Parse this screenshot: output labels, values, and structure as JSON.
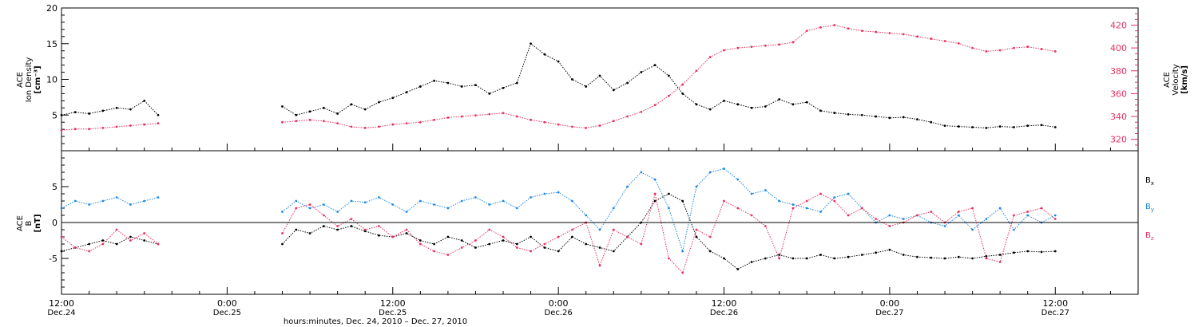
{
  "chart_data": [
    {
      "type": "scatter",
      "panel": "top",
      "ylabel": [
        "ACE",
        "Ion Density",
        "[cm⁻³]"
      ],
      "y2label": [
        "ACE",
        "Velocity",
        "[km/s]"
      ],
      "ylim": [
        0,
        20
      ],
      "y2lim": [
        310,
        435
      ],
      "yticks": [
        5,
        10,
        15,
        20
      ],
      "y2ticks": [
        320,
        340,
        360,
        380,
        400,
        420
      ],
      "series": [
        {
          "name": "",
          "color": "#000000",
          "axis": "left",
          "x": [
            0,
            1,
            2,
            3,
            4,
            5,
            6,
            7,
            8,
            9,
            10,
            11,
            12,
            13,
            14,
            15,
            16,
            17,
            18,
            19,
            20,
            21,
            22,
            23,
            24,
            25,
            26,
            27,
            28,
            29,
            30,
            31,
            32,
            33,
            34,
            35,
            36,
            37,
            38,
            39,
            40,
            41,
            42,
            43,
            44,
            45,
            46,
            47,
            48,
            49,
            50,
            51,
            52,
            53,
            54,
            55,
            56,
            57,
            58,
            59,
            60,
            61,
            62,
            63,
            64,
            65,
            66,
            67,
            68,
            69,
            70,
            71,
            72
          ],
          "y": [
            5,
            5.4,
            5.2,
            5.6,
            6,
            5.8,
            7,
            5,
            null,
            null,
            null,
            null,
            null,
            null,
            null,
            null,
            6.2,
            5,
            5.5,
            6,
            5.2,
            6.5,
            5.8,
            6.8,
            7.4,
            8.2,
            9,
            9.8,
            9.5,
            9,
            9.2,
            8,
            8.8,
            9.5,
            15,
            13.5,
            12.5,
            10,
            9,
            10.5,
            8.5,
            9.5,
            11,
            12,
            10.5,
            8,
            6.5,
            5.8,
            7,
            6.5,
            6,
            6.2,
            7.2,
            6.5,
            6.8,
            5.6,
            5.3,
            5.1,
            5,
            4.8,
            4.6,
            4.7,
            4.4,
            4,
            3.5,
            3.4,
            3.3,
            3.2,
            3.4,
            3.3,
            3.5,
            3.6,
            3.3
          ],
          "x_note": "hours after Dec.24 12:00"
        },
        {
          "name": "",
          "color": "#e8305f",
          "axis": "right",
          "x": [
            0,
            1,
            2,
            3,
            4,
            5,
            6,
            7,
            8,
            9,
            10,
            11,
            12,
            13,
            14,
            15,
            16,
            17,
            18,
            19,
            20,
            21,
            22,
            23,
            24,
            25,
            26,
            27,
            28,
            29,
            30,
            31,
            32,
            33,
            34,
            35,
            36,
            37,
            38,
            39,
            40,
            41,
            42,
            43,
            44,
            45,
            46,
            47,
            48,
            49,
            50,
            51,
            52,
            53,
            54,
            55,
            56,
            57,
            58,
            59,
            60,
            61,
            62,
            63,
            64,
            65,
            66,
            67,
            68,
            69,
            70,
            71,
            72
          ],
          "y": [
            328,
            329,
            329,
            330,
            331,
            332,
            333,
            334,
            null,
            null,
            null,
            null,
            null,
            null,
            null,
            null,
            335,
            336,
            337,
            336,
            334,
            331,
            330,
            331,
            333,
            334,
            335,
            337,
            339,
            340,
            341,
            342,
            343,
            340,
            337,
            335,
            333,
            331,
            330,
            332,
            336,
            340,
            344,
            350,
            358,
            368,
            380,
            392,
            398,
            400,
            401,
            402,
            403,
            405,
            415,
            418,
            420,
            417,
            415,
            414,
            413,
            412,
            410,
            408,
            406,
            404,
            400,
            397,
            398,
            400,
            401,
            399,
            397
          ],
          "x_note": "hours after Dec.24 12:00"
        }
      ]
    },
    {
      "type": "scatter",
      "panel": "bottom",
      "ylabel": [
        "ACE",
        "B",
        "[nT]"
      ],
      "ylim": [
        -10,
        10
      ],
      "yticks": [
        -5,
        0,
        5
      ],
      "zero_line": true,
      "legend_position": "right",
      "legend": [
        {
          "label": "B",
          "sub": "x",
          "color": "#000000"
        },
        {
          "label": "B",
          "sub": "y",
          "color": "#1e88e5"
        },
        {
          "label": "B",
          "sub": "z",
          "color": "#e8305f"
        }
      ],
      "series": [
        {
          "name": "Bx",
          "color": "#000000",
          "x": [
            0,
            1,
            2,
            3,
            4,
            5,
            6,
            7,
            8,
            9,
            10,
            11,
            12,
            13,
            14,
            15,
            16,
            17,
            18,
            19,
            20,
            21,
            22,
            23,
            24,
            25,
            26,
            27,
            28,
            29,
            30,
            31,
            32,
            33,
            34,
            35,
            36,
            37,
            38,
            39,
            40,
            41,
            42,
            43,
            44,
            45,
            46,
            47,
            48,
            49,
            50,
            51,
            52,
            53,
            54,
            55,
            56,
            57,
            58,
            59,
            60,
            61,
            62,
            63,
            64,
            65,
            66,
            67,
            68,
            69,
            70,
            71,
            72
          ],
          "y": [
            -4,
            -3.5,
            -3,
            -2.5,
            -3,
            -2,
            -2.5,
            -3,
            null,
            null,
            null,
            null,
            null,
            null,
            null,
            null,
            -3,
            -1,
            -1.5,
            -0.5,
            -1,
            -0.5,
            -1.2,
            -1.8,
            -2,
            -1.5,
            -2.5,
            -3,
            -2,
            -2.5,
            -3.5,
            -3,
            -2.5,
            -3,
            -2,
            -3.5,
            -4,
            -2,
            -3,
            -3.5,
            -4,
            -2,
            0,
            3,
            4,
            3,
            -2,
            -4,
            -5,
            -6.5,
            -5.5,
            -5,
            -4.5,
            -5,
            -5,
            -4.5,
            -5,
            -4.8,
            -4.5,
            -4.2,
            -3.8,
            -4.5,
            -4.8,
            -4.9,
            -5,
            -4.8,
            -5,
            -4.7,
            -4.5,
            -4.2,
            -4,
            -4.1,
            -4
          ],
          "x_note": "hours after Dec.24 12:00"
        },
        {
          "name": "By",
          "color": "#1e88e5",
          "x": [
            0,
            1,
            2,
            3,
            4,
            5,
            6,
            7,
            8,
            9,
            10,
            11,
            12,
            13,
            14,
            15,
            16,
            17,
            18,
            19,
            20,
            21,
            22,
            23,
            24,
            25,
            26,
            27,
            28,
            29,
            30,
            31,
            32,
            33,
            34,
            35,
            36,
            37,
            38,
            39,
            40,
            41,
            42,
            43,
            44,
            45,
            46,
            47,
            48,
            49,
            50,
            51,
            52,
            53,
            54,
            55,
            56,
            57,
            58,
            59,
            60,
            61,
            62,
            63,
            64,
            65,
            66,
            67,
            68,
            69,
            70,
            71,
            72
          ],
          "y": [
            2,
            3,
            2.5,
            3,
            3.5,
            2.5,
            3,
            3.5,
            null,
            null,
            null,
            null,
            null,
            null,
            null,
            null,
            1.5,
            3,
            2,
            2.5,
            1.5,
            3,
            2.8,
            3.5,
            2.5,
            1.5,
            3,
            2.5,
            2,
            3,
            3.5,
            2.5,
            3,
            2,
            3.5,
            4,
            4.2,
            3,
            1,
            -1,
            2,
            5,
            7,
            6,
            2,
            -4,
            5,
            7,
            7.5,
            6,
            4,
            4.5,
            3,
            2.5,
            2,
            1.5,
            3.5,
            4,
            2,
            0,
            1,
            0.5,
            1,
            0,
            -0.5,
            1,
            -1,
            0.5,
            2,
            -1,
            1,
            0,
            1
          ],
          "x_note": "hours after Dec.24 12:00"
        },
        {
          "name": "Bz",
          "color": "#e8305f",
          "x": [
            0,
            1,
            2,
            3,
            4,
            5,
            6,
            7,
            8,
            9,
            10,
            11,
            12,
            13,
            14,
            15,
            16,
            17,
            18,
            19,
            20,
            21,
            22,
            23,
            24,
            25,
            26,
            27,
            28,
            29,
            30,
            31,
            32,
            33,
            34,
            35,
            36,
            37,
            38,
            39,
            40,
            41,
            42,
            43,
            44,
            45,
            46,
            47,
            48,
            49,
            50,
            51,
            52,
            53,
            54,
            55,
            56,
            57,
            58,
            59,
            60,
            61,
            62,
            63,
            64,
            65,
            66,
            67,
            68,
            69,
            70,
            71,
            72
          ],
          "y": [
            -2,
            -3.5,
            -4,
            -3,
            -1,
            -2.5,
            -1.5,
            -3,
            null,
            null,
            null,
            null,
            null,
            null,
            null,
            null,
            -1.5,
            2,
            2.5,
            1,
            -0.5,
            0.5,
            -1,
            -0.5,
            -2,
            -1,
            -3,
            -4,
            -4.5,
            -3.5,
            -2.5,
            -1,
            -2,
            -3.5,
            -4,
            -3,
            -2,
            -1,
            0,
            -6,
            -1,
            -2,
            -3,
            4,
            -5,
            -7,
            -1,
            -2,
            3,
            2,
            1,
            -0.5,
            -5,
            2,
            3,
            4,
            3,
            1,
            2,
            0.5,
            -0.5,
            0,
            1,
            1.5,
            0,
            1.5,
            2,
            -5,
            -5.5,
            1,
            1.5,
            2,
            0.5
          ],
          "x_note": "hours after Dec.24 12:00"
        }
      ]
    }
  ],
  "xaxis": {
    "ticks": [
      {
        "time": "12:00",
        "date": "Dec.24"
      },
      {
        "time": "0:00",
        "date": "Dec.25"
      },
      {
        "time": "12:00",
        "date": "Dec.25"
      },
      {
        "time": "0:00",
        "date": "Dec.26"
      },
      {
        "time": "12:00",
        "date": "Dec.26"
      },
      {
        "time": "0:00",
        "date": "Dec.27"
      },
      {
        "time": "12:00",
        "date": "Dec.27"
      }
    ],
    "label": "hours:minutes, Dec. 24, 2010 – Dec. 27, 2010",
    "range_hours": [
      0,
      78
    ]
  }
}
